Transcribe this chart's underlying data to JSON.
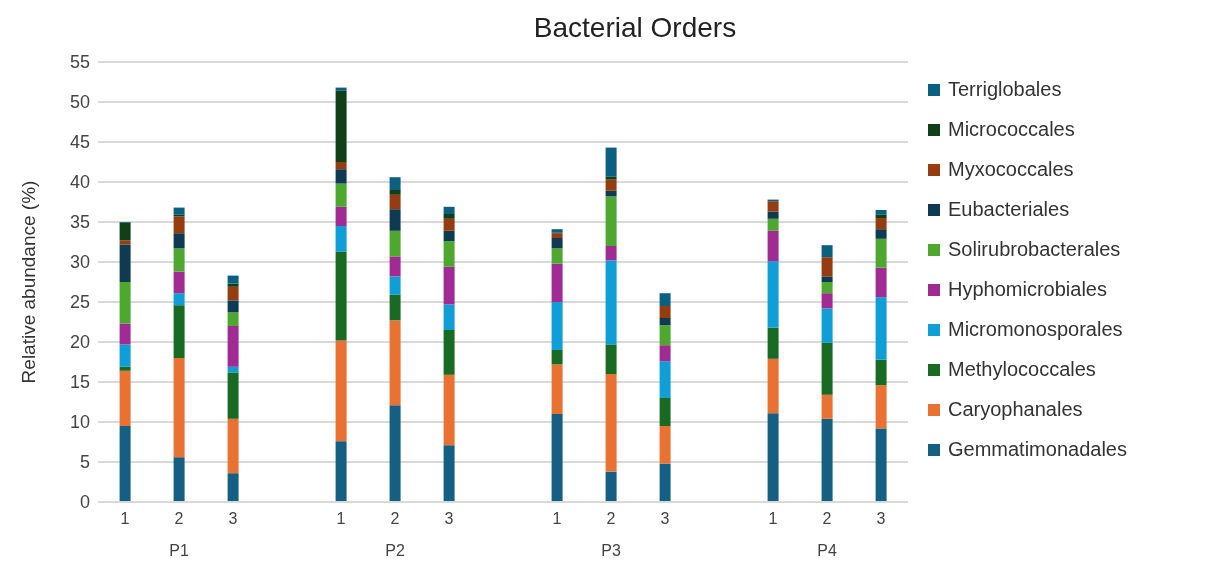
{
  "chart_data": {
    "type": "bar",
    "title": "Bacterial Orders",
    "ylabel": "Relative abundance (%)",
    "stacked": true,
    "categories": [
      "1",
      "2",
      "3",
      null,
      "1",
      "2",
      "3",
      null,
      "1",
      "2",
      "3",
      null,
      "1",
      "2",
      "3"
    ],
    "annotations": [
      "P1",
      "P2",
      "P3",
      "P4"
    ],
    "series": [
      {
        "name": "Gemmatimonadales",
        "color": "#156082",
        "values": [
          9.5,
          5.6,
          3.6,
          null,
          7.6,
          12.1,
          7.1,
          null,
          11.0,
          3.8,
          4.8,
          null,
          11.1,
          10.4,
          9.2
        ]
      },
      {
        "name": "Caryophanales",
        "color": "#e97132",
        "values": [
          6.9,
          12.4,
          6.8,
          null,
          12.6,
          10.6,
          8.8,
          null,
          6.2,
          12.2,
          4.7,
          null,
          6.8,
          3.0,
          5.4
        ]
      },
      {
        "name": "Methylococcales",
        "color": "#196b24",
        "values": [
          0.5,
          6.6,
          5.8,
          null,
          11.1,
          3.2,
          5.6,
          null,
          1.8,
          3.7,
          3.5,
          null,
          3.9,
          6.5,
          3.2
        ]
      },
      {
        "name": "Micromonosporales",
        "color": "#0f9ed5",
        "values": [
          2.8,
          1.5,
          0.7,
          null,
          3.2,
          2.3,
          3.2,
          null,
          6.0,
          10.5,
          4.6,
          null,
          8.3,
          4.3,
          7.8
        ]
      },
      {
        "name": "Hyphomicrobiales",
        "color": "#a02b93",
        "values": [
          2.6,
          2.7,
          5.1,
          null,
          2.4,
          2.5,
          4.7,
          null,
          4.8,
          1.8,
          2.0,
          null,
          3.8,
          1.9,
          3.7
        ]
      },
      {
        "name": "Solirubrobacterales",
        "color": "#4ea72e",
        "values": [
          5.2,
          2.9,
          1.7,
          null,
          2.9,
          3.2,
          3.2,
          null,
          1.9,
          6.2,
          2.5,
          null,
          1.5,
          1.4,
          3.6
        ]
      },
      {
        "name": "Eubacteriales",
        "color": "#0e3a52",
        "values": [
          4.7,
          1.9,
          1.5,
          null,
          1.8,
          2.7,
          1.3,
          null,
          1.3,
          0.7,
          0.9,
          null,
          0.9,
          0.7,
          1.2
        ]
      },
      {
        "name": "Myxococcales",
        "color": "#953d10",
        "values": [
          0.5,
          2.1,
          1.7,
          null,
          0.9,
          1.8,
          1.5,
          null,
          0.6,
          1.4,
          1.5,
          null,
          1.3,
          2.4,
          1.4
        ]
      },
      {
        "name": "Micrococcales",
        "color": "#113f17",
        "values": [
          2.2,
          0.2,
          0.4,
          null,
          8.9,
          0.6,
          0.6,
          null,
          0.1,
          0.4,
          0,
          null,
          0,
          0,
          0.4
        ]
      },
      {
        "name": "Terriglobales",
        "color": "#0b5f80",
        "values": [
          0.1,
          0.9,
          1.0,
          null,
          0.4,
          1.6,
          0.9,
          null,
          0.4,
          3.6,
          1.6,
          null,
          0.2,
          1.5,
          0.6
        ]
      }
    ],
    "ylim": [
      0,
      55
    ],
    "yticks": [
      0,
      5,
      10,
      15,
      20,
      25,
      30,
      35,
      40,
      45,
      50,
      55
    ],
    "grid": "y",
    "legend": "right"
  }
}
